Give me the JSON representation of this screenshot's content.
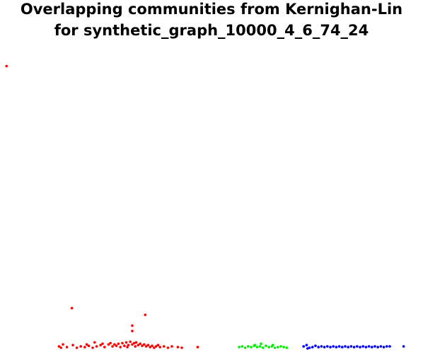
{
  "chart_data": {
    "type": "scatter",
    "title_lines": [
      "Overlapping communities from Kernighan-Lin",
      "for synthetic_graph_10000_4_6_74_24"
    ],
    "xlabel": "",
    "ylabel": "",
    "axes_visible": false,
    "grid": false,
    "colors": {
      "red": "#ff0000",
      "green": "#00ee00",
      "blue": "#0000ff"
    },
    "series": [
      {
        "color": "#ff0000",
        "points": [
          [
            -25,
            42
          ],
          [
            41,
            6.0
          ],
          [
            115,
            5.0
          ],
          [
            102,
            3.4
          ],
          [
            102,
            2.6
          ],
          [
            28,
            0.3
          ],
          [
            30,
            0.1
          ],
          [
            32,
            0.6
          ],
          [
            36,
            0.2
          ],
          [
            42,
            0.5
          ],
          [
            46,
            0.1
          ],
          [
            50,
            0.3
          ],
          [
            54,
            0.2
          ],
          [
            58,
            0.4
          ],
          [
            62,
            0.1
          ],
          [
            66,
            0.3
          ],
          [
            70,
            0.5
          ],
          [
            74,
            0.2
          ],
          [
            78,
            0.6
          ],
          [
            82,
            0.3
          ],
          [
            86,
            0.4
          ],
          [
            88,
            0.7
          ],
          [
            90,
            0.2
          ],
          [
            92,
            0.8
          ],
          [
            94,
            0.4
          ],
          [
            96,
            0.9
          ],
          [
            98,
            0.5
          ],
          [
            100,
            1.0
          ],
          [
            102,
            0.6
          ],
          [
            104,
            0.8
          ],
          [
            106,
            0.9
          ],
          [
            108,
            0.5
          ],
          [
            110,
            0.7
          ],
          [
            112,
            0.4
          ],
          [
            114,
            0.6
          ],
          [
            116,
            0.3
          ],
          [
            118,
            0.5
          ],
          [
            120,
            0.2
          ],
          [
            122,
            0.4
          ],
          [
            124,
            0.1
          ],
          [
            126,
            0.3
          ],
          [
            128,
            0.5
          ],
          [
            130,
            0.2
          ],
          [
            134,
            0.3
          ],
          [
            138,
            0.1
          ],
          [
            142,
            0.3
          ],
          [
            148,
            0.2
          ],
          [
            152,
            0.1
          ],
          [
            168,
            0.2
          ],
          [
            56,
            0.6
          ],
          [
            64,
            0.9
          ],
          [
            72,
            0.7
          ],
          [
            80,
            0.8
          ],
          [
            84,
            0.6
          ],
          [
            97,
            0.2
          ],
          [
            105,
            0.3
          ]
        ]
      },
      {
        "color": "#00ee00",
        "points": [
          [
            210,
            0.2
          ],
          [
            213,
            0.3
          ],
          [
            216,
            0.1
          ],
          [
            219,
            0.3
          ],
          [
            222,
            0.2
          ],
          [
            225,
            0.4
          ],
          [
            228,
            0.2
          ],
          [
            231,
            0.3
          ],
          [
            234,
            0.1
          ],
          [
            237,
            0.4
          ],
          [
            240,
            0.2
          ],
          [
            243,
            0.3
          ],
          [
            246,
            0.1
          ],
          [
            249,
            0.2
          ],
          [
            252,
            0.3
          ],
          [
            255,
            0.2
          ],
          [
            258,
            0.1
          ],
          [
            232,
            0.7
          ],
          [
            226,
            0.5
          ],
          [
            244,
            0.5
          ]
        ]
      },
      {
        "color": "#0000ff",
        "points": [
          [
            275,
            0.3
          ],
          [
            278,
            0.5
          ],
          [
            281,
            0.1
          ],
          [
            284,
            0.2
          ],
          [
            287,
            0.4
          ],
          [
            290,
            0.2
          ],
          [
            293,
            0.3
          ],
          [
            296,
            0.2
          ],
          [
            299,
            0.3
          ],
          [
            302,
            0.2
          ],
          [
            305,
            0.3
          ],
          [
            308,
            0.2
          ],
          [
            311,
            0.3
          ],
          [
            314,
            0.2
          ],
          [
            317,
            0.3
          ],
          [
            320,
            0.2
          ],
          [
            323,
            0.3
          ],
          [
            326,
            0.2
          ],
          [
            329,
            0.3
          ],
          [
            332,
            0.2
          ],
          [
            335,
            0.3
          ],
          [
            338,
            0.2
          ],
          [
            341,
            0.3
          ],
          [
            344,
            0.2
          ],
          [
            347,
            0.3
          ],
          [
            350,
            0.2
          ],
          [
            353,
            0.3
          ],
          [
            356,
            0.2
          ],
          [
            359,
            0.3
          ],
          [
            362,
            0.3
          ],
          [
            376,
            0.3
          ],
          [
            279,
            0.0
          ]
        ]
      }
    ],
    "xlim": [
      -28,
      392
    ],
    "ylim": [
      0,
      45
    ]
  }
}
